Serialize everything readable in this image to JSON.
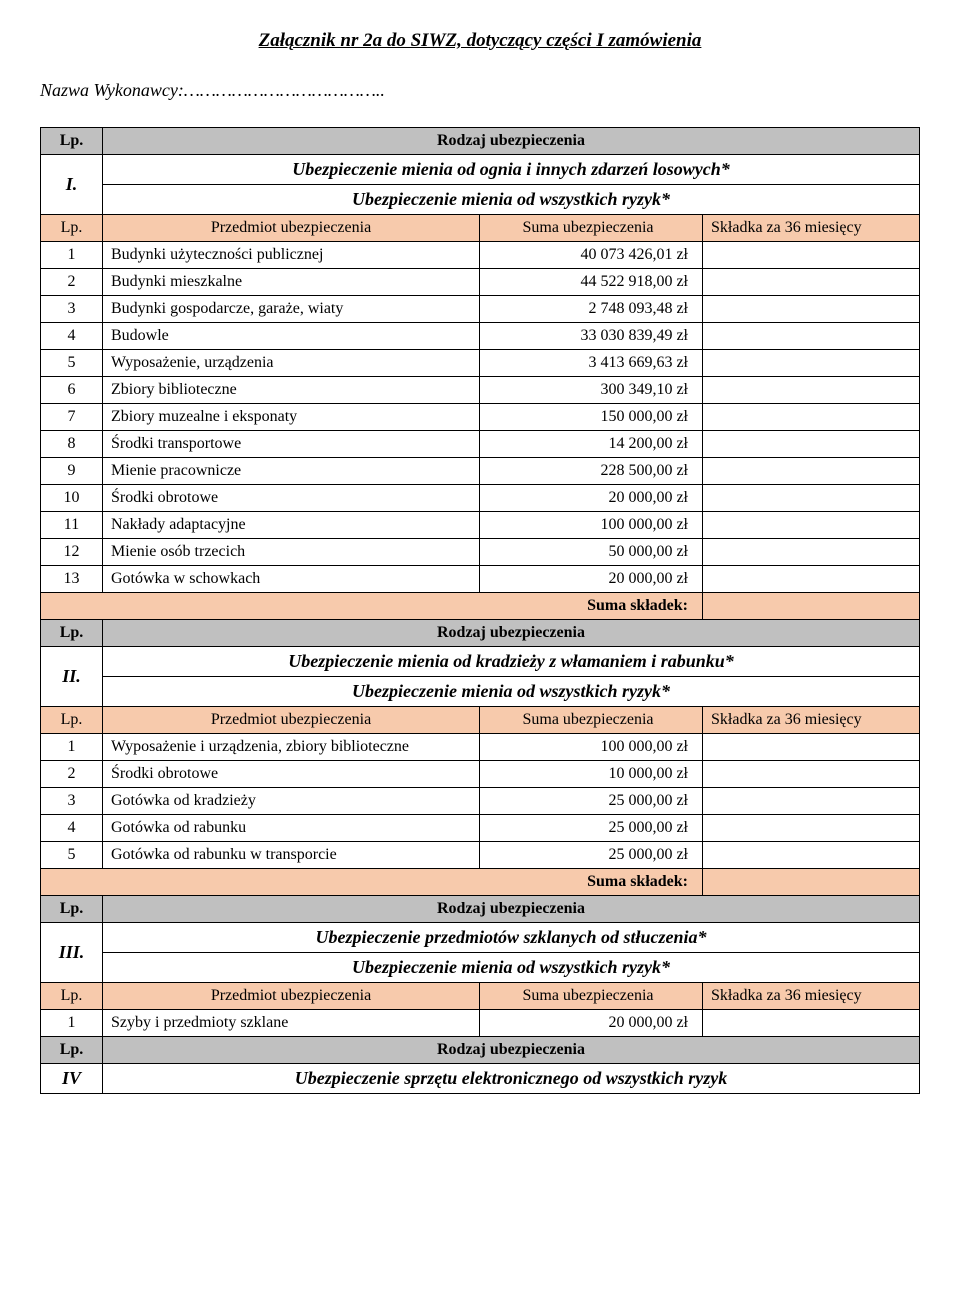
{
  "title": "Załącznik nr 2a do SIWZ, dotyczący części I zamówienia",
  "contractor_label": "Nazwa Wykonawcy:………………………………..",
  "labels": {
    "lp": "Lp.",
    "rodzaj": "Rodzaj ubezpieczenia",
    "przedmiot": "Przedmiot ubezpieczenia",
    "suma_ubez": "Suma ubezpieczenia",
    "skladka": "Składka za 36 miesięcy",
    "suma_skladek": "Suma składek:"
  },
  "sections": {
    "s1": {
      "roman": "I.",
      "heading": "Ubezpieczenie mienia od ognia i innych zdarzeń losowych*",
      "subheading": "Ubezpieczenie mienia od wszystkich ryzyk*",
      "rows": [
        {
          "n": "1",
          "name": "Budynki użyteczności publicznej",
          "sum": "40 073 426,01 zł"
        },
        {
          "n": "2",
          "name": "Budynki mieszkalne",
          "sum": "44 522 918,00 zł"
        },
        {
          "n": "3",
          "name": "Budynki gospodarcze, garaże, wiaty",
          "sum": "2 748 093,48 zł"
        },
        {
          "n": "4",
          "name": "Budowle",
          "sum": "33 030 839,49 zł"
        },
        {
          "n": "5",
          "name": "Wyposażenie, urządzenia",
          "sum": "3 413 669,63 zł"
        },
        {
          "n": "6",
          "name": "Zbiory biblioteczne",
          "sum": "300 349,10 zł"
        },
        {
          "n": "7",
          "name": "Zbiory muzealne i eksponaty",
          "sum": "150 000,00 zł"
        },
        {
          "n": "8",
          "name": "Środki transportowe",
          "sum": "14 200,00 zł"
        },
        {
          "n": "9",
          "name": "Mienie pracownicze",
          "sum": "228 500,00 zł"
        },
        {
          "n": "10",
          "name": "Środki obrotowe",
          "sum": "20 000,00 zł"
        },
        {
          "n": "11",
          "name": "Nakłady adaptacyjne",
          "sum": "100 000,00 zł"
        },
        {
          "n": "12",
          "name": "Mienie osób trzecich",
          "sum": "50 000,00 zł"
        },
        {
          "n": "13",
          "name": "Gotówka w schowkach",
          "sum": "20 000,00 zł"
        }
      ]
    },
    "s2": {
      "roman": "II.",
      "heading": "Ubezpieczenie mienia od kradzieży z włamaniem i rabunku*",
      "subheading": "Ubezpieczenie mienia od wszystkich ryzyk*",
      "rows": [
        {
          "n": "1",
          "name": "Wyposażenie i urządzenia, zbiory biblioteczne",
          "sum": "100 000,00 zł"
        },
        {
          "n": "2",
          "name": "Środki obrotowe",
          "sum": "10 000,00 zł"
        },
        {
          "n": "3",
          "name": "Gotówka od kradzieży",
          "sum": "25 000,00 zł"
        },
        {
          "n": "4",
          "name": "Gotówka od rabunku",
          "sum": "25 000,00 zł"
        },
        {
          "n": "5",
          "name": "Gotówka od rabunku w transporcie",
          "sum": "25 000,00 zł"
        }
      ]
    },
    "s3": {
      "roman": "III.",
      "heading": "Ubezpieczenie przedmiotów szklanych od stłuczenia*",
      "subheading": "Ubezpieczenie mienia od wszystkich ryzyk*",
      "rows": [
        {
          "n": "1",
          "name": "Szyby i przedmioty szklane",
          "sum": "20 000,00 zł"
        }
      ]
    },
    "s4": {
      "roman": "IV",
      "heading": "Ubezpieczenie sprzętu elektronicznego od wszystkich ryzyk"
    }
  }
}
